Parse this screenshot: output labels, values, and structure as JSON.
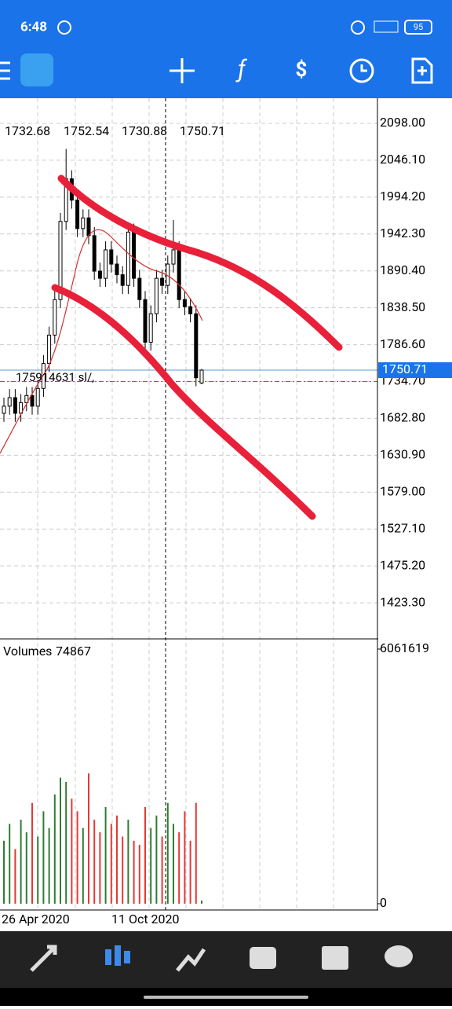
{
  "status_bar": {
    "time": "6:48",
    "battery": "95"
  },
  "chart": {
    "type": "candlestick",
    "candle_color": "#000000",
    "grid": true,
    "open": [
      1690,
      1700,
      1712,
      1690,
      1705,
      1715,
      1700,
      1725,
      1760,
      1800,
      1850,
      1960,
      2020,
      1990,
      1950,
      1965,
      1940,
      1890,
      1880,
      1920,
      1900,
      1885,
      1870,
      1945,
      1880,
      1850,
      1790,
      1830,
      1880,
      1870,
      1900,
      1920,
      1850,
      1840,
      1830,
      1732.68
    ],
    "high": [
      1712,
      1724,
      1724,
      1717,
      1727,
      1727,
      1737,
      1772,
      1812,
      1862,
      1972,
      2062,
      2032,
      2002,
      1977,
      1977,
      1952,
      1902,
      1932,
      1932,
      1912,
      1897,
      1957,
      1957,
      1892,
      1862,
      1842,
      1892,
      1892,
      1912,
      1962,
      1932,
      1862,
      1852,
      1842,
      1752.54
    ],
    "low": [
      1678,
      1688,
      1678,
      1678,
      1693,
      1688,
      1688,
      1713,
      1748,
      1788,
      1838,
      1948,
      1978,
      1938,
      1938,
      1928,
      1878,
      1868,
      1868,
      1888,
      1873,
      1858,
      1858,
      1868,
      1838,
      1778,
      1778,
      1818,
      1858,
      1858,
      1888,
      1838,
      1828,
      1818,
      1728,
      1730.88
    ],
    "close": [
      1700,
      1712,
      1690,
      1705,
      1715,
      1700,
      1725,
      1760,
      1800,
      1850,
      1960,
      2020,
      1990,
      1950,
      1965,
      1940,
      1890,
      1880,
      1920,
      1900,
      1885,
      1870,
      1945,
      1880,
      1850,
      1790,
      1830,
      1880,
      1870,
      1900,
      1920,
      1850,
      1840,
      1830,
      1740,
      1750.71
    ],
    "ylim": [
      1372.5,
      2133.4
    ],
    "yticks": [
      {
        "value": 2098,
        "label": "2098.00"
      },
      {
        "value": 2046.1,
        "label": "2046.10"
      },
      {
        "value": 1994.2,
        "label": "1994.20"
      },
      {
        "value": 1942.3,
        "label": "1942.30"
      },
      {
        "value": 1890.4,
        "label": "1890.40"
      },
      {
        "value": 1838.5,
        "label": "1838.50"
      },
      {
        "value": 1786.6,
        "label": "1786.60"
      },
      {
        "value": 1734.7,
        "label": "1734.70"
      },
      {
        "value": 1682.8,
        "label": "1682.80"
      },
      {
        "value": 1630.9,
        "label": "1630.90"
      },
      {
        "value": 1579,
        "label": "1579.00"
      },
      {
        "value": 1527.1,
        "label": "1527.10"
      },
      {
        "value": 1475.2,
        "label": "1475.20"
      },
      {
        "value": 1423.3,
        "label": "1423.30"
      }
    ],
    "order_label": "175914631 sl/,",
    "x_labels": [
      "26 Apr 2020",
      "11 Oct 2020"
    ],
    "volume": {
      "title": "Volumes",
      "up_color": "#2e7d32",
      "down_color": "#e53935",
      "values": [
        1500000,
        1900000,
        1300000,
        2000000,
        1700000,
        2400000,
        1600000,
        2200000,
        1800000,
        2600000,
        3000000,
        2900000,
        2500000,
        2200000,
        1800000,
        3100000,
        2000000,
        1700000,
        2300000,
        1900000,
        2100000,
        1600000,
        2000000,
        1500000,
        1400000,
        2300000,
        1800000,
        2100000,
        1600000,
        2400000,
        1900000,
        1700000,
        2200000,
        1500000,
        2400000,
        74867
      ],
      "ylim": [
        0,
        6267000
      ],
      "yticks": [
        6061619,
        0
      ]
    }
  }
}
